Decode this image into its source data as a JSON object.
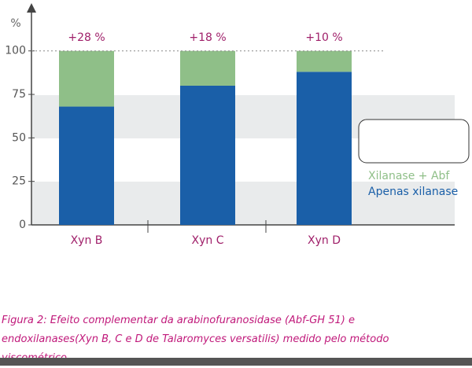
{
  "chart_data": {
    "type": "stacked-bar",
    "y_label": "%",
    "categories": [
      "Xyn B",
      "Xyn C",
      "Xyn D"
    ],
    "series": [
      {
        "name": "Apenas xilanase",
        "color": "#1a5fa8",
        "values": [
          68,
          80,
          88
        ]
      },
      {
        "name": "Xilanase + Abf",
        "color": "#8fbf88",
        "values": [
          32,
          20,
          12
        ]
      }
    ],
    "annotations": [
      "+28 %",
      "+18 %",
      "+10 %"
    ],
    "ylim": [
      0,
      127
    ],
    "yticks": [
      0,
      25,
      50,
      75,
      100
    ],
    "caption": "Figura 2: Efeito complementar da arabinofuranosidase (Abf-GH 51) e endoxilanases(Xyn B, C e D de Talaromyces versatilis) medido pelo método viscométrico."
  }
}
